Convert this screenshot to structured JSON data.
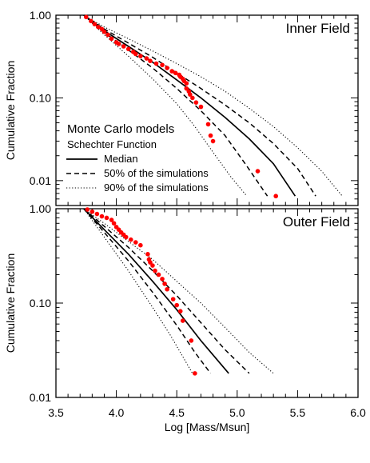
{
  "chart_data": [
    {
      "type": "line",
      "title": "Inner Field",
      "xlabel": "",
      "ylabel": "Cumulative Fraction",
      "xlim": [
        3.5,
        6.0
      ],
      "ylim": [
        0.005,
        1.0
      ],
      "yscale": "log",
      "x_ticks": [
        "3.5",
        "4.0",
        "4.5",
        "5.0",
        "5.5",
        "6.0"
      ],
      "x_tick_labels_shown": false,
      "y_ticks": [
        {
          "value": 1.0,
          "label": "1.00"
        },
        {
          "value": 0.1,
          "label": "0.10"
        },
        {
          "value": 0.01,
          "label": "0.01"
        }
      ],
      "grid": false,
      "legend": {
        "placement": "middle-left",
        "heading": "Monte Carlo models",
        "subheading": "Schechter Function",
        "entries": [
          {
            "label": "Median",
            "style": "solid"
          },
          {
            "label": "50% of the simulations",
            "style": "dashed"
          },
          {
            "label": "90% of the simulations",
            "style": "dotted"
          }
        ]
      },
      "series": [
        {
          "style": "solid",
          "x": [
            3.73,
            3.9,
            4.1,
            4.3,
            4.5,
            4.7,
            4.9,
            5.1,
            5.3,
            5.48
          ],
          "y": [
            1.0,
            0.65,
            0.42,
            0.27,
            0.165,
            0.1,
            0.058,
            0.032,
            0.016,
            0.0065
          ]
        },
        {
          "style": "dashed",
          "x": [
            3.73,
            3.9,
            4.1,
            4.3,
            4.5,
            4.7,
            4.9,
            5.1,
            5.3,
            5.5,
            5.65
          ],
          "y": [
            1.0,
            0.68,
            0.46,
            0.31,
            0.2,
            0.13,
            0.082,
            0.05,
            0.028,
            0.014,
            0.0065
          ]
        },
        {
          "style": "dashed",
          "x": [
            3.73,
            3.9,
            4.1,
            4.3,
            4.5,
            4.7,
            4.9,
            5.08,
            5.25
          ],
          "y": [
            1.0,
            0.62,
            0.38,
            0.23,
            0.13,
            0.07,
            0.035,
            0.015,
            0.0065
          ]
        },
        {
          "style": "dotted",
          "x": [
            3.73,
            3.9,
            4.1,
            4.3,
            4.5,
            4.7,
            4.9,
            5.1,
            5.3,
            5.5,
            5.7,
            5.87
          ],
          "y": [
            1.0,
            0.72,
            0.52,
            0.37,
            0.26,
            0.18,
            0.12,
            0.075,
            0.045,
            0.025,
            0.013,
            0.0065
          ]
        },
        {
          "style": "dotted",
          "x": [
            3.73,
            3.9,
            4.1,
            4.3,
            4.5,
            4.65,
            4.8,
            4.95,
            5.08
          ],
          "y": [
            1.0,
            0.58,
            0.32,
            0.17,
            0.085,
            0.045,
            0.022,
            0.011,
            0.0065
          ]
        },
        {
          "style": "points",
          "x": [
            3.75,
            3.79,
            3.82,
            3.85,
            3.88,
            3.9,
            3.93,
            3.96,
            4.0,
            4.02,
            4.06,
            4.1,
            4.14,
            4.16,
            4.2,
            4.25,
            4.28,
            4.33,
            4.38,
            4.42,
            4.46,
            4.49,
            4.52,
            4.53,
            4.55,
            4.56,
            4.58,
            4.58,
            4.6,
            4.61,
            4.63,
            4.66,
            4.7,
            4.76,
            4.78,
            4.8,
            5.17,
            5.32
          ],
          "y": [
            0.95,
            0.85,
            0.78,
            0.72,
            0.68,
            0.63,
            0.58,
            0.52,
            0.47,
            0.45,
            0.42,
            0.39,
            0.36,
            0.34,
            0.32,
            0.3,
            0.28,
            0.26,
            0.25,
            0.23,
            0.21,
            0.2,
            0.19,
            0.18,
            0.17,
            0.16,
            0.15,
            0.13,
            0.12,
            0.11,
            0.1,
            0.088,
            0.078,
            0.048,
            0.035,
            0.03,
            0.013,
            0.0065
          ]
        }
      ]
    },
    {
      "type": "line",
      "title": "Outer Field",
      "xlabel": "Log [Mass/Msun]",
      "ylabel": "Cumulative Fraction",
      "xlim": [
        3.5,
        6.0
      ],
      "ylim": [
        0.01,
        1.0
      ],
      "yscale": "log",
      "x_ticks": [
        "3.5",
        "4.0",
        "4.5",
        "5.0",
        "5.5",
        "6.0"
      ],
      "y_ticks": [
        {
          "value": 1.0,
          "label": "1.00"
        },
        {
          "value": 0.1,
          "label": "0.10"
        },
        {
          "value": 0.01,
          "label": "0.01"
        }
      ],
      "grid": false,
      "series": [
        {
          "style": "solid",
          "x": [
            3.73,
            3.9,
            4.1,
            4.3,
            4.5,
            4.7,
            4.93
          ],
          "y": [
            1.0,
            0.6,
            0.33,
            0.17,
            0.085,
            0.04,
            0.018
          ]
        },
        {
          "style": "dashed",
          "x": [
            3.73,
            3.9,
            4.1,
            4.3,
            4.5,
            4.7,
            4.9,
            5.1
          ],
          "y": [
            1.0,
            0.65,
            0.39,
            0.22,
            0.12,
            0.062,
            0.032,
            0.018
          ]
        },
        {
          "style": "dashed",
          "x": [
            3.73,
            3.9,
            4.1,
            4.3,
            4.5,
            4.65,
            4.78
          ],
          "y": [
            1.0,
            0.56,
            0.28,
            0.13,
            0.058,
            0.03,
            0.018
          ]
        },
        {
          "style": "dotted",
          "x": [
            3.73,
            3.9,
            4.1,
            4.3,
            4.5,
            4.7,
            4.9,
            5.1,
            5.3
          ],
          "y": [
            1.0,
            0.7,
            0.45,
            0.29,
            0.17,
            0.1,
            0.055,
            0.03,
            0.018
          ]
        },
        {
          "style": "dotted",
          "x": [
            3.73,
            3.9,
            4.1,
            4.3,
            4.45,
            4.55,
            4.63
          ],
          "y": [
            1.0,
            0.5,
            0.22,
            0.09,
            0.045,
            0.027,
            0.018
          ]
        },
        {
          "style": "points",
          "x": [
            3.76,
            3.8,
            3.84,
            3.88,
            3.92,
            3.96,
            3.98,
            4.0,
            4.02,
            4.04,
            4.06,
            4.08,
            4.12,
            4.16,
            4.2,
            4.26,
            4.27,
            4.28,
            4.3,
            4.32,
            4.35,
            4.38,
            4.4,
            4.42,
            4.47,
            4.5,
            4.53,
            4.55,
            4.62,
            4.65
          ],
          "y": [
            0.98,
            0.93,
            0.88,
            0.83,
            0.8,
            0.76,
            0.7,
            0.64,
            0.6,
            0.56,
            0.53,
            0.5,
            0.47,
            0.44,
            0.41,
            0.33,
            0.29,
            0.27,
            0.25,
            0.22,
            0.2,
            0.18,
            0.16,
            0.14,
            0.11,
            0.095,
            0.082,
            0.065,
            0.04,
            0.018
          ]
        }
      ]
    }
  ],
  "colors": {
    "data_points": "#ff0000",
    "lines": "#000000"
  }
}
